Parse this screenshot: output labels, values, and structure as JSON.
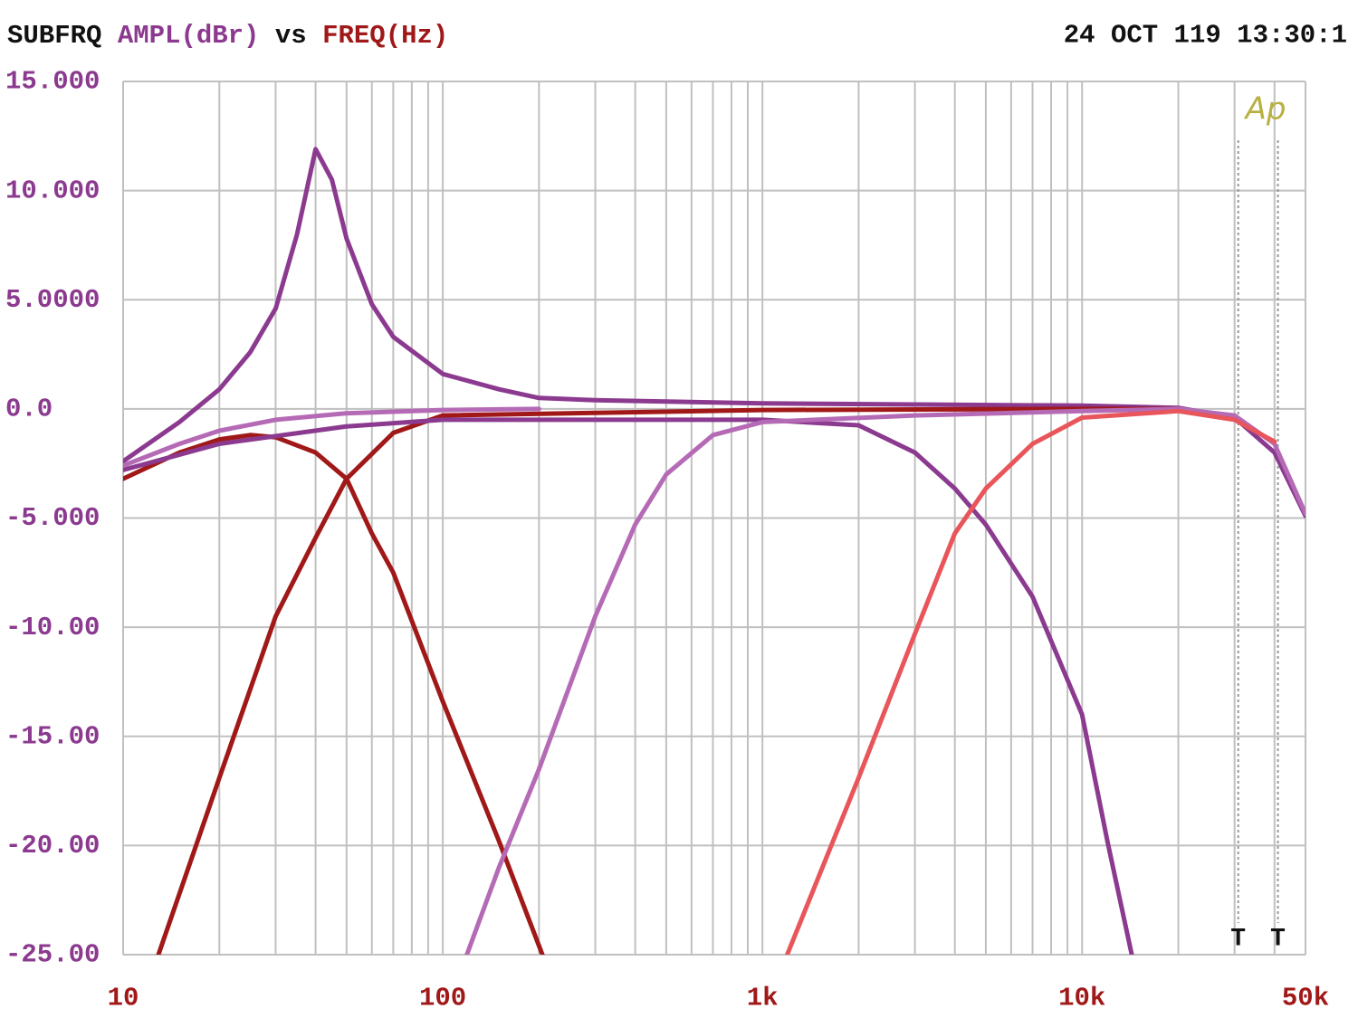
{
  "chart_data": {
    "type": "line",
    "title_parts": [
      {
        "text": "SUBFRQ",
        "color": "#111111"
      },
      {
        "text": "AMPL(dBr)",
        "color": "#8b3a8f"
      },
      {
        "text": "vs",
        "color": "#111111"
      },
      {
        "text": "FREQ(Hz)",
        "color": "#a01818"
      }
    ],
    "timestamp": "24 OCT 119 13:30:1",
    "logo": "Ap",
    "xscale": "log",
    "grid": true,
    "xlim": [
      10,
      50000
    ],
    "ylim": [
      -25,
      15
    ],
    "xticks": [
      10,
      100,
      {
        "value": 1000,
        "label": "1k"
      },
      {
        "value": 10000,
        "label": "10k"
      },
      {
        "value": 50000,
        "label": "50k"
      }
    ],
    "xminor": [
      20,
      30,
      40,
      50,
      60,
      70,
      80,
      90,
      200,
      300,
      400,
      500,
      600,
      700,
      800,
      900,
      2000,
      3000,
      4000,
      5000,
      6000,
      7000,
      8000,
      9000,
      20000,
      30000,
      40000
    ],
    "yticks": [
      {
        "value": 15,
        "label": "15.000"
      },
      {
        "value": 10,
        "label": "10.000"
      },
      {
        "value": 5,
        "label": "5.0000"
      },
      {
        "value": 0,
        "label": "0.0"
      },
      {
        "value": -5,
        "label": "-5.000"
      },
      {
        "value": -10,
        "label": "-10.00"
      },
      {
        "value": -15,
        "label": "-15.00"
      },
      {
        "value": -20,
        "label": "-20.00"
      },
      {
        "value": -25,
        "label": "-25.00"
      }
    ],
    "cursors": [
      {
        "x": 30800,
        "label": "T"
      },
      {
        "x": 41000,
        "label": "T"
      }
    ],
    "series": [
      {
        "color": "#8b3a8f",
        "x": [
          10,
          15,
          20,
          25,
          30,
          35,
          40,
          45,
          50,
          60,
          70,
          100,
          150,
          200,
          300,
          1000,
          3000,
          10000,
          20000,
          30000,
          40000,
          50000
        ],
        "values": [
          -2.4,
          -0.6,
          0.9,
          2.6,
          4.6,
          8.0,
          11.9,
          10.5,
          7.8,
          4.8,
          3.3,
          1.6,
          0.9,
          0.5,
          0.4,
          0.25,
          0.2,
          0.15,
          0.05,
          -0.4,
          -2.0,
          -4.9
        ]
      },
      {
        "color": "#a01818",
        "x": [
          10,
          15,
          20,
          25,
          30,
          40,
          50,
          60,
          70,
          100,
          150,
          205
        ],
        "values": [
          -3.2,
          -2.0,
          -1.4,
          -1.2,
          -1.3,
          -2.0,
          -3.2,
          -5.7,
          -7.5,
          -13.4,
          -19.8,
          -25
        ]
      },
      {
        "color": "#a01818",
        "x": [
          12.9,
          20,
          30,
          40,
          50,
          70,
          100,
          1000,
          10000,
          20000
        ],
        "values": [
          -25,
          -16.9,
          -9.5,
          -5.9,
          -3.2,
          -1.1,
          -0.3,
          -0.05,
          0,
          0
        ]
      },
      {
        "color": "#8b3a8f",
        "x": [
          10,
          20,
          50,
          100,
          1000,
          2000,
          3000,
          4000,
          5000,
          7000,
          10000,
          12000,
          14300
        ],
        "values": [
          -2.8,
          -1.6,
          -0.8,
          -0.5,
          -0.5,
          -0.75,
          -2.0,
          -3.65,
          -5.3,
          -8.6,
          -14.0,
          -19.8,
          -25
        ]
      },
      {
        "color": "#b56ab5",
        "x": [
          119,
          150,
          200,
          300,
          400,
          500,
          700,
          1000,
          3000,
          10000,
          20000,
          30000,
          40000,
          50000
        ],
        "values": [
          -25,
          -21,
          -16.5,
          -9.5,
          -5.3,
          -3.0,
          -1.2,
          -0.6,
          -0.3,
          -0.1,
          0,
          -0.3,
          -1.6,
          -4.8
        ]
      },
      {
        "color": "#b56ab5",
        "x": [
          10,
          15,
          20,
          30,
          50,
          100,
          200
        ],
        "values": [
          -2.6,
          -1.6,
          -1.0,
          -0.5,
          -0.2,
          -0.05,
          0
        ]
      },
      {
        "color": "#e8555a",
        "x": [
          1195,
          2000,
          3000,
          4000,
          5000,
          7000,
          10000,
          20000,
          30000,
          40000
        ],
        "values": [
          -25,
          -16.9,
          -10.3,
          -5.7,
          -3.65,
          -1.6,
          -0.4,
          -0.1,
          -0.5,
          -1.5
        ]
      }
    ]
  }
}
